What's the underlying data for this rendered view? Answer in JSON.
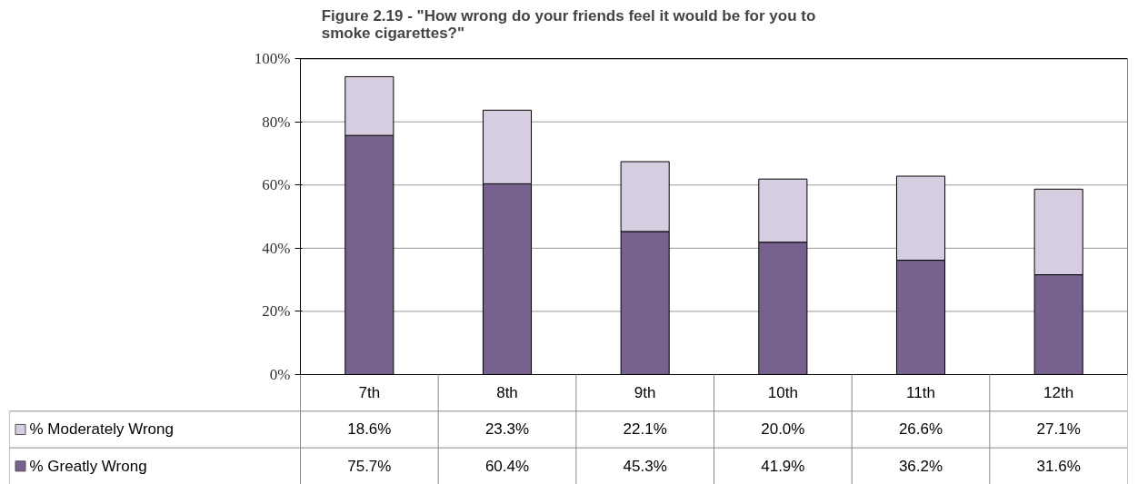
{
  "chart_data": {
    "type": "bar",
    "stacked": true,
    "title": "Figure 2.19 - \"How wrong do your friends feel it would be for you to smoke cigarettes?\"",
    "categories": [
      "7th",
      "8th",
      "9th",
      "10th",
      "11th",
      "12th"
    ],
    "series": [
      {
        "name": "% Greatly Wrong",
        "color": "#77618e",
        "values": [
          75.7,
          60.4,
          45.3,
          41.9,
          36.2,
          31.6
        ],
        "value_labels": [
          "75.7%",
          "60.4%",
          "45.3%",
          "41.9%",
          "36.2%",
          "31.6%"
        ]
      },
      {
        "name": "% Moderately Wrong",
        "color": "#d6cde1",
        "values": [
          18.6,
          23.3,
          22.1,
          20.0,
          26.6,
          27.1
        ],
        "value_labels": [
          "18.6%",
          "23.3%",
          "22.1%",
          "20.0%",
          "26.6%",
          "27.1%"
        ]
      }
    ],
    "ylim": [
      0,
      100
    ],
    "yticks": [
      {
        "value": 0,
        "label": "0%"
      },
      {
        "value": 20,
        "label": "20%"
      },
      {
        "value": 40,
        "label": "40%"
      },
      {
        "value": 60,
        "label": "60%"
      },
      {
        "value": 80,
        "label": "80%"
      },
      {
        "value": 100,
        "label": "100%"
      }
    ],
    "grid": "y",
    "legend": "bottom"
  }
}
